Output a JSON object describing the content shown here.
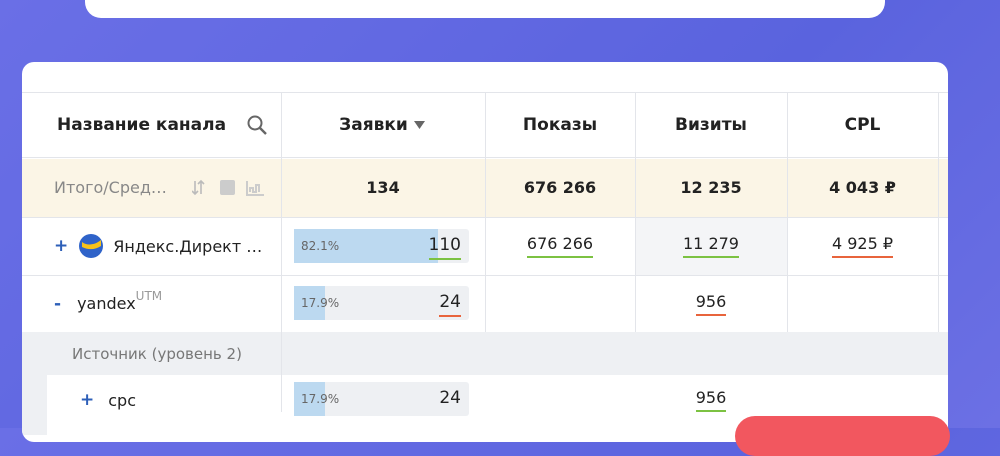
{
  "header": {
    "columns": [
      "Название канала",
      "Заявки",
      "Показы",
      "Визиты",
      "CPL"
    ]
  },
  "totals": {
    "label": "Итого/Сред…",
    "leads": "134",
    "impressions": "676 266",
    "visits": "12 235",
    "cpl": "4 043 ₽"
  },
  "rows": [
    {
      "toggle": "+",
      "name": "Яндекс.Директ …",
      "share": 82.1,
      "share_label": "82.1%",
      "leads": "110",
      "impressions": "676 266",
      "visits": "11 279",
      "cpl": "4 925 ₽"
    },
    {
      "toggle": "-",
      "name": "yandex",
      "tag": "UTM",
      "share": 17.9,
      "share_label": "17.9%",
      "leads": "24",
      "visits": "956"
    }
  ],
  "group": {
    "label": "Источник (уровень 2)"
  },
  "subrows": [
    {
      "toggle": "+",
      "name": "cpc",
      "share": 17.9,
      "share_label": "17.9%",
      "leads": "24",
      "visits": "956"
    }
  ]
}
